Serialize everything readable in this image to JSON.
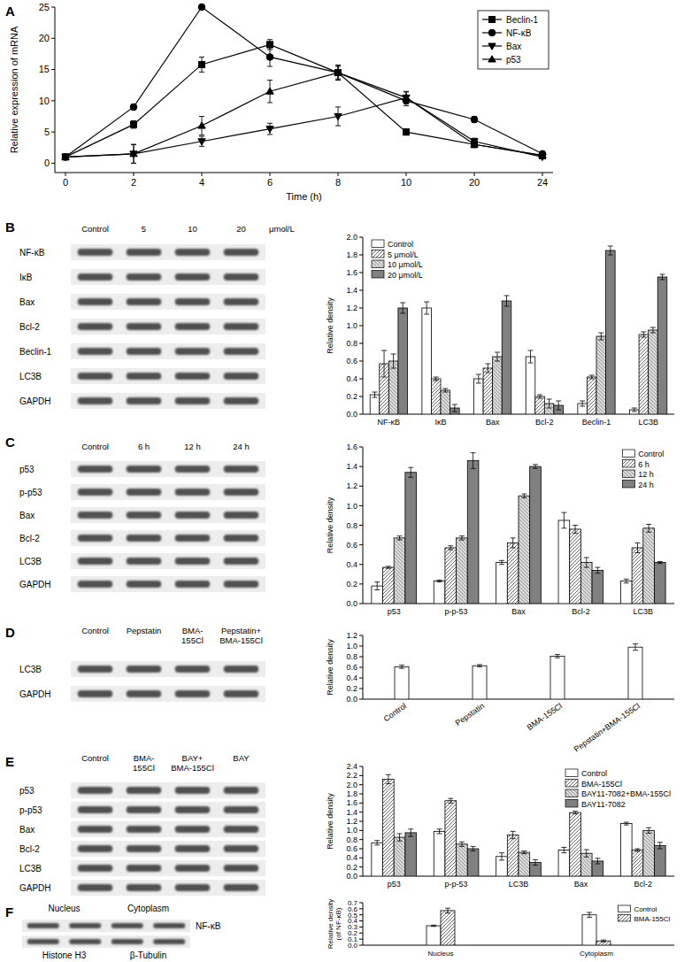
{
  "chart_data": [
    {
      "type": "line",
      "title": "A",
      "xlabel": "Time (h)",
      "ylabel": "Relative expression of mRNA",
      "categories": [
        "0",
        "2",
        "4",
        "6",
        "8",
        "10",
        "20",
        "24"
      ],
      "ylim": [
        -1.5,
        25
      ],
      "yticks": [
        0,
        5,
        10,
        15,
        20,
        25
      ],
      "legend": "upper right",
      "series": [
        {
          "name": "Beclin-1",
          "color": "#000000",
          "marker": "square",
          "values": [
            1,
            6.2,
            15.8,
            19,
            14.5,
            5,
            3,
            1.2
          ],
          "errors": [
            0.3,
            0.6,
            1.2,
            0.8,
            1.0,
            0.5,
            0.4,
            0.3
          ]
        },
        {
          "name": "NF-κB",
          "color": "#000000",
          "marker": "circle",
          "values": [
            1,
            9,
            25,
            17,
            14.5,
            10,
            7,
            1.5
          ],
          "errors": [
            0.3,
            0.4,
            0.3,
            1.5,
            1.2,
            0.8,
            0.5,
            0.3
          ]
        },
        {
          "name": "Bax",
          "color": "#000000",
          "marker": "triangle-down",
          "values": [
            1,
            1.5,
            3.5,
            5.5,
            7.5,
            10.5,
            3.5,
            1
          ],
          "errors": [
            0.3,
            1.5,
            0.8,
            0.9,
            1.5,
            0.9,
            0.5,
            0.3
          ]
        },
        {
          "name": "p53",
          "color": "#000000",
          "marker": "triangle",
          "values": [
            1,
            1.5,
            6,
            11.5,
            14.5,
            10.5,
            3,
            1.3
          ],
          "errors": [
            0.3,
            1.5,
            1.5,
            1.8,
            1.2,
            1.0,
            0.5,
            0.3
          ]
        }
      ]
    },
    {
      "type": "bar",
      "title": "B",
      "ylabel": "Relative density",
      "categories": [
        "NF-κB",
        "IκB",
        "Bax",
        "Bcl-2",
        "Beclin-1",
        "LC3B"
      ],
      "ylim": [
        0,
        2
      ],
      "yticks": [
        {
          "value": 0,
          "label": "0.0"
        },
        0.2,
        0.4,
        0.6,
        0.8,
        {
          "value": 1,
          "label": "1.0"
        },
        1.2,
        1.4,
        1.6,
        1.8,
        {
          "value": 2,
          "label": "2.0"
        }
      ],
      "legend": "upper left",
      "series": [
        {
          "name": "Control",
          "color": "#ffffff",
          "values": [
            0.22,
            1.2,
            0.4,
            0.65,
            0.12,
            0.05
          ],
          "errors": [
            0.03,
            0.07,
            0.05,
            0.07,
            0.03,
            0.02
          ]
        },
        {
          "name": "5 μmol/L",
          "color": "#ffffff",
          "values": [
            0.57,
            0.4,
            0.52,
            0.2,
            0.42,
            0.9
          ],
          "errors": [
            0.15,
            0.02,
            0.05,
            0.02,
            0.02,
            0.03
          ]
        },
        {
          "name": "10 μmol/L",
          "color": "#d9d9d9",
          "values": [
            0.6,
            0.27,
            0.65,
            0.12,
            0.88,
            0.95
          ],
          "errors": [
            0.08,
            0.02,
            0.05,
            0.05,
            0.04,
            0.03
          ]
        },
        {
          "name": "20 μmol/L",
          "color": "#808080",
          "values": [
            1.2,
            0.07,
            1.28,
            0.1,
            1.85,
            1.55
          ],
          "errors": [
            0.06,
            0.04,
            0.06,
            0.05,
            0.05,
            0.03
          ]
        }
      ]
    },
    {
      "type": "bar",
      "title": "C",
      "ylabel": "Relative density",
      "categories": [
        "p53",
        "p-p-53",
        "Bax",
        "Bcl-2",
        "LC3B"
      ],
      "ylim": [
        0,
        1.6
      ],
      "yticks": [
        {
          "value": 0,
          "label": "0.0"
        },
        0.2,
        0.4,
        0.6,
        0.8,
        {
          "value": 1,
          "label": "1.0"
        },
        1.2,
        1.4,
        1.6
      ],
      "legend": "upper right",
      "series": [
        {
          "name": "Control",
          "color": "#ffffff",
          "values": [
            0.18,
            0.23,
            0.42,
            0.85,
            0.23
          ],
          "errors": [
            0.04,
            0.01,
            0.02,
            0.08,
            0.02
          ]
        },
        {
          "name": "6 h",
          "color": "#ffffff",
          "values": [
            0.37,
            0.57,
            0.62,
            0.76,
            0.57
          ],
          "errors": [
            0.01,
            0.02,
            0.05,
            0.04,
            0.05
          ]
        },
        {
          "name": "12 h",
          "color": "#d9d9d9",
          "values": [
            0.67,
            0.67,
            1.1,
            0.42,
            0.77
          ],
          "errors": [
            0.02,
            0.02,
            0.02,
            0.05,
            0.04
          ]
        },
        {
          "name": "24 h",
          "color": "#808080",
          "values": [
            1.34,
            1.46,
            1.4,
            0.34,
            0.42
          ],
          "errors": [
            0.05,
            0.08,
            0.02,
            0.03,
            0.01
          ]
        }
      ]
    },
    {
      "type": "bar",
      "title": "D",
      "ylabel": "Relative density",
      "categories": [
        "Control",
        "Pepstatin",
        "BMA-155Cl",
        "Pepstatin+BMA-155Cl"
      ],
      "ylim": [
        0,
        1.2
      ],
      "yticks": [
        {
          "value": 0,
          "label": "0.0"
        },
        0.2,
        0.4,
        0.6,
        0.8,
        {
          "value": 1,
          "label": "1.0"
        },
        1.2
      ],
      "color": "#ffffff",
      "values": [
        0.61,
        0.63,
        0.81,
        0.98
      ],
      "errors": [
        0.03,
        0.02,
        0.03,
        0.06
      ]
    },
    {
      "type": "bar",
      "title": "E",
      "ylabel": "Relative density",
      "categories": [
        "p53",
        "p-p-53",
        "LC3B",
        "Bax",
        "Bcl-2"
      ],
      "ylim": [
        0,
        2.4
      ],
      "yticks": [
        {
          "value": 0,
          "label": "0.0"
        },
        0.2,
        0.4,
        0.6,
        0.8,
        {
          "value": 1,
          "label": "1.0"
        },
        1.2,
        1.4,
        1.6,
        1.8,
        {
          "value": 2,
          "label": "2.0"
        },
        2.2,
        2.4
      ],
      "legend": "upper right",
      "series": [
        {
          "name": "Control",
          "color": "#ffffff",
          "values": [
            0.73,
            0.98,
            0.43,
            0.57,
            1.15
          ],
          "errors": [
            0.05,
            0.05,
            0.08,
            0.06,
            0.03
          ]
        },
        {
          "name": "BMA-155Cl",
          "color": "#ffffff",
          "values": [
            2.12,
            1.65,
            0.9,
            1.39,
            0.57
          ],
          "errors": [
            0.1,
            0.05,
            0.08,
            0.03,
            0.03
          ]
        },
        {
          "name": "BAY11-7082+BMA-155Cl",
          "color": "#d9d9d9",
          "values": [
            0.85,
            0.7,
            0.52,
            0.5,
            1.0
          ],
          "errors": [
            0.08,
            0.05,
            0.03,
            0.08,
            0.06
          ]
        },
        {
          "name": "BAY11-7082",
          "color": "#808080",
          "values": [
            0.95,
            0.6,
            0.3,
            0.33,
            0.67
          ],
          "errors": [
            0.08,
            0.05,
            0.06,
            0.06,
            0.07
          ]
        }
      ]
    },
    {
      "type": "bar",
      "title": "F",
      "ylabel": "Relative density\n(of NF-κB)",
      "categories": [
        "Nucleus",
        "Cytoplasm"
      ],
      "ylim": [
        0,
        0.7
      ],
      "yticks": [
        {
          "value": 0,
          "label": "0.0"
        },
        0.1,
        0.2,
        0.3,
        0.4,
        0.5,
        0.6,
        0.7
      ],
      "legend": "upper right",
      "series": [
        {
          "name": "Control",
          "color": "#ffffff",
          "values": [
            0.32,
            0.5
          ],
          "errors": [
            0.01,
            0.04
          ]
        },
        {
          "name": "BMA-155Cl",
          "color": "#ffffff",
          "values": [
            0.57,
            0.07
          ],
          "errors": [
            0.04,
            0.015
          ]
        }
      ]
    }
  ],
  "blots": [
    {
      "lanes": [
        "Control",
        "5",
        "10",
        "20"
      ],
      "unit": "μmol/L",
      "rows": [
        "NF-κB",
        "IκB",
        "Bax",
        "Bcl-2",
        "Beclin-1",
        "LC3B",
        "GAPDH"
      ]
    },
    {
      "lanes": [
        "Control",
        "6 h",
        "12 h",
        "24 h"
      ],
      "rows": [
        "p53",
        "p-p53",
        "Bax",
        "Bcl-2",
        "LC3B",
        "GAPDH"
      ]
    },
    {
      "lanes": [
        "Control",
        "Pepstatin",
        "BMA-\n155Cl",
        "Pepstatin+\nBMA-155Cl"
      ],
      "rows": [
        "LC3B",
        "GAPDH"
      ]
    },
    {
      "lanes": [
        "Control",
        "BMA-\n155Cl",
        "BAY+\nBMA-155Cl",
        "BAY"
      ],
      "rows": [
        "p53",
        "p-p53",
        "Bax",
        "Bcl-2",
        "LC3B",
        "GAPDH"
      ]
    },
    {
      "groups": [
        "Nucleus",
        "Cytoplasm"
      ],
      "rows": [
        "NF-κB"
      ],
      "loading_controls": [
        "Histone H3",
        "β-Tubulin"
      ]
    }
  ]
}
